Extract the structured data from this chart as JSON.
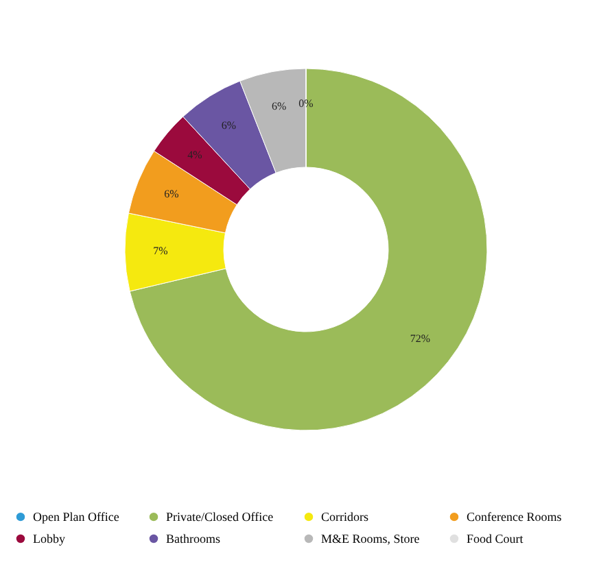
{
  "chart_data": {
    "type": "donut",
    "categories": [
      "Open Plan Office",
      "Private/Closed Office",
      "Corridors",
      "Conference Rooms",
      "Lobby",
      "Bathrooms",
      "M&E Rooms, Store",
      "Food Court"
    ],
    "values": [
      0,
      72,
      7,
      6,
      4,
      6,
      6,
      0
    ],
    "value_labels": [
      null,
      "72%",
      "7%",
      "6%",
      "4%",
      "6%",
      "6%",
      "0%"
    ],
    "colors": [
      "#2e9bd6",
      "#9bbb59",
      "#f5e90f",
      "#f29d1e",
      "#9b0a3d",
      "#6a56a3",
      "#b8b8b8",
      "#e0e0e0"
    ],
    "legend": "bottom"
  }
}
